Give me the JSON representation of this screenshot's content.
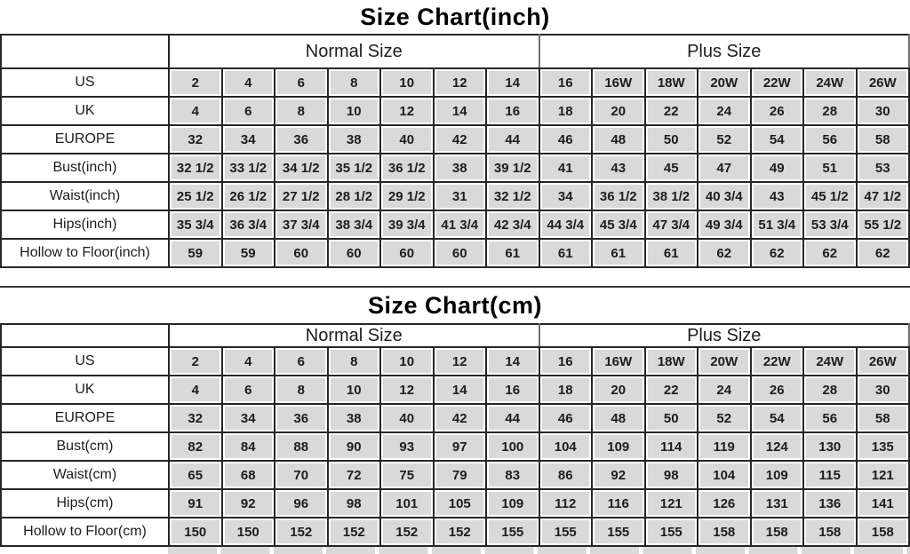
{
  "colors": {
    "cell_fill": "#d9d9d9",
    "grid_line": "#262626",
    "header_divider": "#6f6f6f",
    "text": "#1d1d1d",
    "background": "#ffffff"
  },
  "chart_data": [
    {
      "type": "table",
      "title": "Size Chart(inch)",
      "column_groups": [
        {
          "label": "Normal Size",
          "span": 7
        },
        {
          "label": "Plus Size",
          "span": 7
        }
      ],
      "rows": [
        {
          "label": "US",
          "values": [
            "2",
            "4",
            "6",
            "8",
            "10",
            "12",
            "14",
            "16",
            "16W",
            "18W",
            "20W",
            "22W",
            "24W",
            "26W"
          ]
        },
        {
          "label": "UK",
          "values": [
            "4",
            "6",
            "8",
            "10",
            "12",
            "14",
            "16",
            "18",
            "20",
            "22",
            "24",
            "26",
            "28",
            "30"
          ]
        },
        {
          "label": "EUROPE",
          "values": [
            "32",
            "34",
            "36",
            "38",
            "40",
            "42",
            "44",
            "46",
            "48",
            "50",
            "52",
            "54",
            "56",
            "58"
          ]
        },
        {
          "label": "Bust(inch)",
          "values": [
            "32 1/2",
            "33 1/2",
            "34 1/2",
            "35 1/2",
            "36 1/2",
            "38",
            "39 1/2",
            "41",
            "43",
            "45",
            "47",
            "49",
            "51",
            "53"
          ]
        },
        {
          "label": "Waist(inch)",
          "values": [
            "25 1/2",
            "26 1/2",
            "27 1/2",
            "28 1/2",
            "29 1/2",
            "31",
            "32 1/2",
            "34",
            "36 1/2",
            "38 1/2",
            "40 3/4",
            "43",
            "45 1/2",
            "47 1/2"
          ]
        },
        {
          "label": "Hips(inch)",
          "values": [
            "35 3/4",
            "36 3/4",
            "37 3/4",
            "38 3/4",
            "39 3/4",
            "41 3/4",
            "42 3/4",
            "44 3/4",
            "45 3/4",
            "47 3/4",
            "49 3/4",
            "51 3/4",
            "53 3/4",
            "55 1/2"
          ]
        },
        {
          "label": "Hollow to Floor(inch)",
          "values": [
            "59",
            "59",
            "60",
            "60",
            "60",
            "60",
            "61",
            "61",
            "61",
            "61",
            "62",
            "62",
            "62",
            "62"
          ]
        }
      ]
    },
    {
      "type": "table",
      "title": "Size Chart(cm)",
      "column_groups": [
        {
          "label": "Normal Size",
          "span": 7
        },
        {
          "label": "Plus Size",
          "span": 7
        }
      ],
      "rows": [
        {
          "label": "US",
          "values": [
            "2",
            "4",
            "6",
            "8",
            "10",
            "12",
            "14",
            "16",
            "16W",
            "18W",
            "20W",
            "22W",
            "24W",
            "26W"
          ]
        },
        {
          "label": "UK",
          "values": [
            "4",
            "6",
            "8",
            "10",
            "12",
            "14",
            "16",
            "18",
            "20",
            "22",
            "24",
            "26",
            "28",
            "30"
          ]
        },
        {
          "label": "EUROPE",
          "values": [
            "32",
            "34",
            "36",
            "38",
            "40",
            "42",
            "44",
            "46",
            "48",
            "50",
            "52",
            "54",
            "56",
            "58"
          ]
        },
        {
          "label": "Bust(cm)",
          "values": [
            "82",
            "84",
            "88",
            "90",
            "93",
            "97",
            "100",
            "104",
            "109",
            "114",
            "119",
            "124",
            "130",
            "135"
          ]
        },
        {
          "label": "Waist(cm)",
          "values": [
            "65",
            "68",
            "70",
            "72",
            "75",
            "79",
            "83",
            "86",
            "92",
            "98",
            "104",
            "109",
            "115",
            "121"
          ]
        },
        {
          "label": "Hips(cm)",
          "values": [
            "91",
            "92",
            "96",
            "98",
            "101",
            "105",
            "109",
            "112",
            "116",
            "121",
            "126",
            "131",
            "136",
            "141"
          ]
        },
        {
          "label": "Hollow to Floor(cm)",
          "values": [
            "150",
            "150",
            "152",
            "152",
            "152",
            "152",
            "155",
            "155",
            "155",
            "155",
            "158",
            "158",
            "158",
            "158"
          ]
        }
      ]
    }
  ]
}
